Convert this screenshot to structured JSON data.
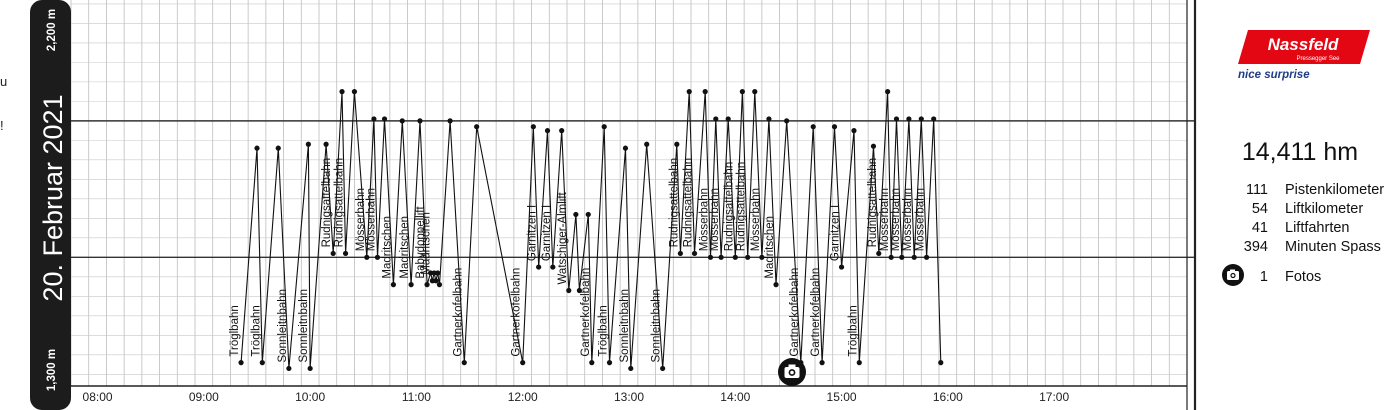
{
  "edge_glyphs": [
    "u",
    "!"
  ],
  "colors": {
    "band": "#1c1c1c",
    "grid": "#bdbdbd",
    "hgrid": "#c8c8c8",
    "trace": "#111111",
    "brand": "#e30613",
    "brand_tagline": "#1f3c88"
  },
  "stats": {
    "total": "14,411 hm",
    "rows": [
      {
        "num": "111",
        "label": "Pistenkilometer"
      },
      {
        "num": "54",
        "label": "Liftkilometer"
      },
      {
        "num": "41",
        "label": "Liftfahrten"
      },
      {
        "num": "394",
        "label": "Minuten Spass"
      }
    ],
    "photos": {
      "num": "1",
      "label": "Fotos",
      "icon": "camera-icon"
    }
  },
  "logo": {
    "name": "Nassfeld",
    "sub": "Pressegger See",
    "tagline": "nice surprise"
  },
  "chart_data": {
    "type": "line",
    "title": "20. Februar 2021",
    "y_tick_labels": [
      {
        "value": 2200,
        "label": "2,200 m"
      },
      {
        "value": 1300,
        "label": "1,300 m"
      }
    ],
    "ylim": [
      1270,
      2260
    ],
    "x_ticks": [
      "08:00",
      "09:00",
      "10:00",
      "11:00",
      "12:00",
      "13:00",
      "14:00",
      "15:00",
      "16:00",
      "17:00"
    ],
    "xlim": [
      "07:45",
      "18:15"
    ],
    "reference_lines": [
      1950,
      1600
    ],
    "points": [
      [
        "09:21",
        1330
      ],
      [
        "09:30",
        1880
      ],
      [
        "09:33",
        1330
      ],
      [
        "09:42",
        1880
      ],
      [
        "09:48",
        1315
      ],
      [
        "09:59",
        1890
      ],
      [
        "10:00",
        1315
      ],
      [
        "10:09",
        1890
      ],
      [
        "10:13",
        1610
      ],
      [
        "10:18",
        2025
      ],
      [
        "10:20",
        1610
      ],
      [
        "10:25",
        2025
      ],
      [
        "10:32",
        1600
      ],
      [
        "10:36",
        1955
      ],
      [
        "10:38",
        1600
      ],
      [
        "10:42",
        1955
      ],
      [
        "10:47",
        1530
      ],
      [
        "10:52",
        1950
      ],
      [
        "10:57",
        1530
      ],
      [
        "11:02",
        1950
      ],
      [
        "11:06",
        1530
      ],
      [
        "11:08",
        1560
      ],
      [
        "11:09",
        1540
      ],
      [
        "11:10",
        1560
      ],
      [
        "11:11",
        1540
      ],
      [
        "11:12",
        1560
      ],
      [
        "11:13",
        1530
      ],
      [
        "11:19",
        1950
      ],
      [
        "11:27",
        1330
      ],
      [
        "11:34",
        1935
      ],
      [
        "12:00",
        1330
      ],
      [
        "12:06",
        1935
      ],
      [
        "12:09",
        1575
      ],
      [
        "12:14",
        1925
      ],
      [
        "12:17",
        1575
      ],
      [
        "12:22",
        1925
      ],
      [
        "12:26",
        1515
      ],
      [
        "12:30",
        1710
      ],
      [
        "12:32",
        1515
      ],
      [
        "12:37",
        1710
      ],
      [
        "12:39",
        1330
      ],
      [
        "12:46",
        1935
      ],
      [
        "12:49",
        1330
      ],
      [
        "12:58",
        1880
      ],
      [
        "13:01",
        1315
      ],
      [
        "13:10",
        1890
      ],
      [
        "13:19",
        1315
      ],
      [
        "13:27",
        1890
      ],
      [
        "13:29",
        1610
      ],
      [
        "13:34",
        2025
      ],
      [
        "13:37",
        1610
      ],
      [
        "13:43",
        2025
      ],
      [
        "13:46",
        1600
      ],
      [
        "13:49",
        1955
      ],
      [
        "13:52",
        1600
      ],
      [
        "13:56",
        1955
      ],
      [
        "14:00",
        1600
      ],
      [
        "14:04",
        2025
      ],
      [
        "14:07",
        1600
      ],
      [
        "14:11",
        2025
      ],
      [
        "14:15",
        1600
      ],
      [
        "14:19",
        1955
      ],
      [
        "14:23",
        1530
      ],
      [
        "14:29",
        1950
      ],
      [
        "14:37",
        1330
      ],
      [
        "14:44",
        1935
      ],
      [
        "14:49",
        1330
      ],
      [
        "14:56",
        1935
      ],
      [
        "15:00",
        1575
      ],
      [
        "15:07",
        1925
      ],
      [
        "15:10",
        1330
      ],
      [
        "15:18",
        1885
      ],
      [
        "15:21",
        1610
      ],
      [
        "15:26",
        2025
      ],
      [
        "15:28",
        1600
      ],
      [
        "15:31",
        1955
      ],
      [
        "15:34",
        1600
      ],
      [
        "15:38",
        1955
      ],
      [
        "15:41",
        1600
      ],
      [
        "15:45",
        1955
      ],
      [
        "15:48",
        1600
      ],
      [
        "15:52",
        1955
      ],
      [
        "15:56",
        1330
      ]
    ],
    "lift_labels": [
      [
        "09:21",
        "Tröglbahn"
      ],
      [
        "09:33",
        "Tröglbahn"
      ],
      [
        "09:48",
        "Sonnleitnbahn"
      ],
      [
        "10:00",
        "Sonnleitnbahn"
      ],
      [
        "10:13",
        "Rudnigsattelbahn"
      ],
      [
        "10:20",
        "Rudnigsattelbahn"
      ],
      [
        "10:32",
        "Mösserbahn"
      ],
      [
        "10:38",
        "Mösserbahn"
      ],
      [
        "10:47",
        "Madritschen"
      ],
      [
        "10:57",
        "Madritschen"
      ],
      [
        "11:06",
        "Babydoppellift"
      ],
      [
        "11:09",
        "Madritschen"
      ],
      [
        "11:27",
        "Gartnerkofelbahn"
      ],
      [
        "12:00",
        "Gartnerkofelbahn"
      ],
      [
        "12:09",
        "Garnitzen I"
      ],
      [
        "12:17",
        "Garnitzen I"
      ],
      [
        "12:26",
        "Watschiger-Almlift"
      ],
      [
        "12:39",
        "Gartnerkofelbahn"
      ],
      [
        "12:49",
        "Tröglbahn"
      ],
      [
        "13:01",
        "Sonnleitnbahn"
      ],
      [
        "13:19",
        "Sonnleitnbahn"
      ],
      [
        "13:29",
        "Rudnigsattelbahn"
      ],
      [
        "13:37",
        "Rudnigsattelbahn"
      ],
      [
        "13:46",
        "Mösserbahn"
      ],
      [
        "13:52",
        "Mösserbahn"
      ],
      [
        "14:00",
        "Rudnigsattelbahn"
      ],
      [
        "14:07",
        "Rudnigsattelbahn"
      ],
      [
        "14:15",
        "Mösserbahn"
      ],
      [
        "14:23",
        "Madritschen"
      ],
      [
        "14:37",
        "Gartnerkofelbahn"
      ],
      [
        "14:49",
        "Gartnerkofelbahn"
      ],
      [
        "15:00",
        "Garnitzen I"
      ],
      [
        "15:10",
        "Tröglbahn"
      ],
      [
        "15:21",
        "Rudnigsattelbahn"
      ],
      [
        "15:28",
        "Mösserbahn"
      ],
      [
        "15:34",
        "Mösserbahn"
      ],
      [
        "15:41",
        "Mösserbahn"
      ],
      [
        "15:48",
        "Mösserbahn"
      ]
    ],
    "photo_markers": [
      {
        "time": "14:32",
        "icon": "camera-icon"
      }
    ],
    "grid": true,
    "legend": "none"
  }
}
